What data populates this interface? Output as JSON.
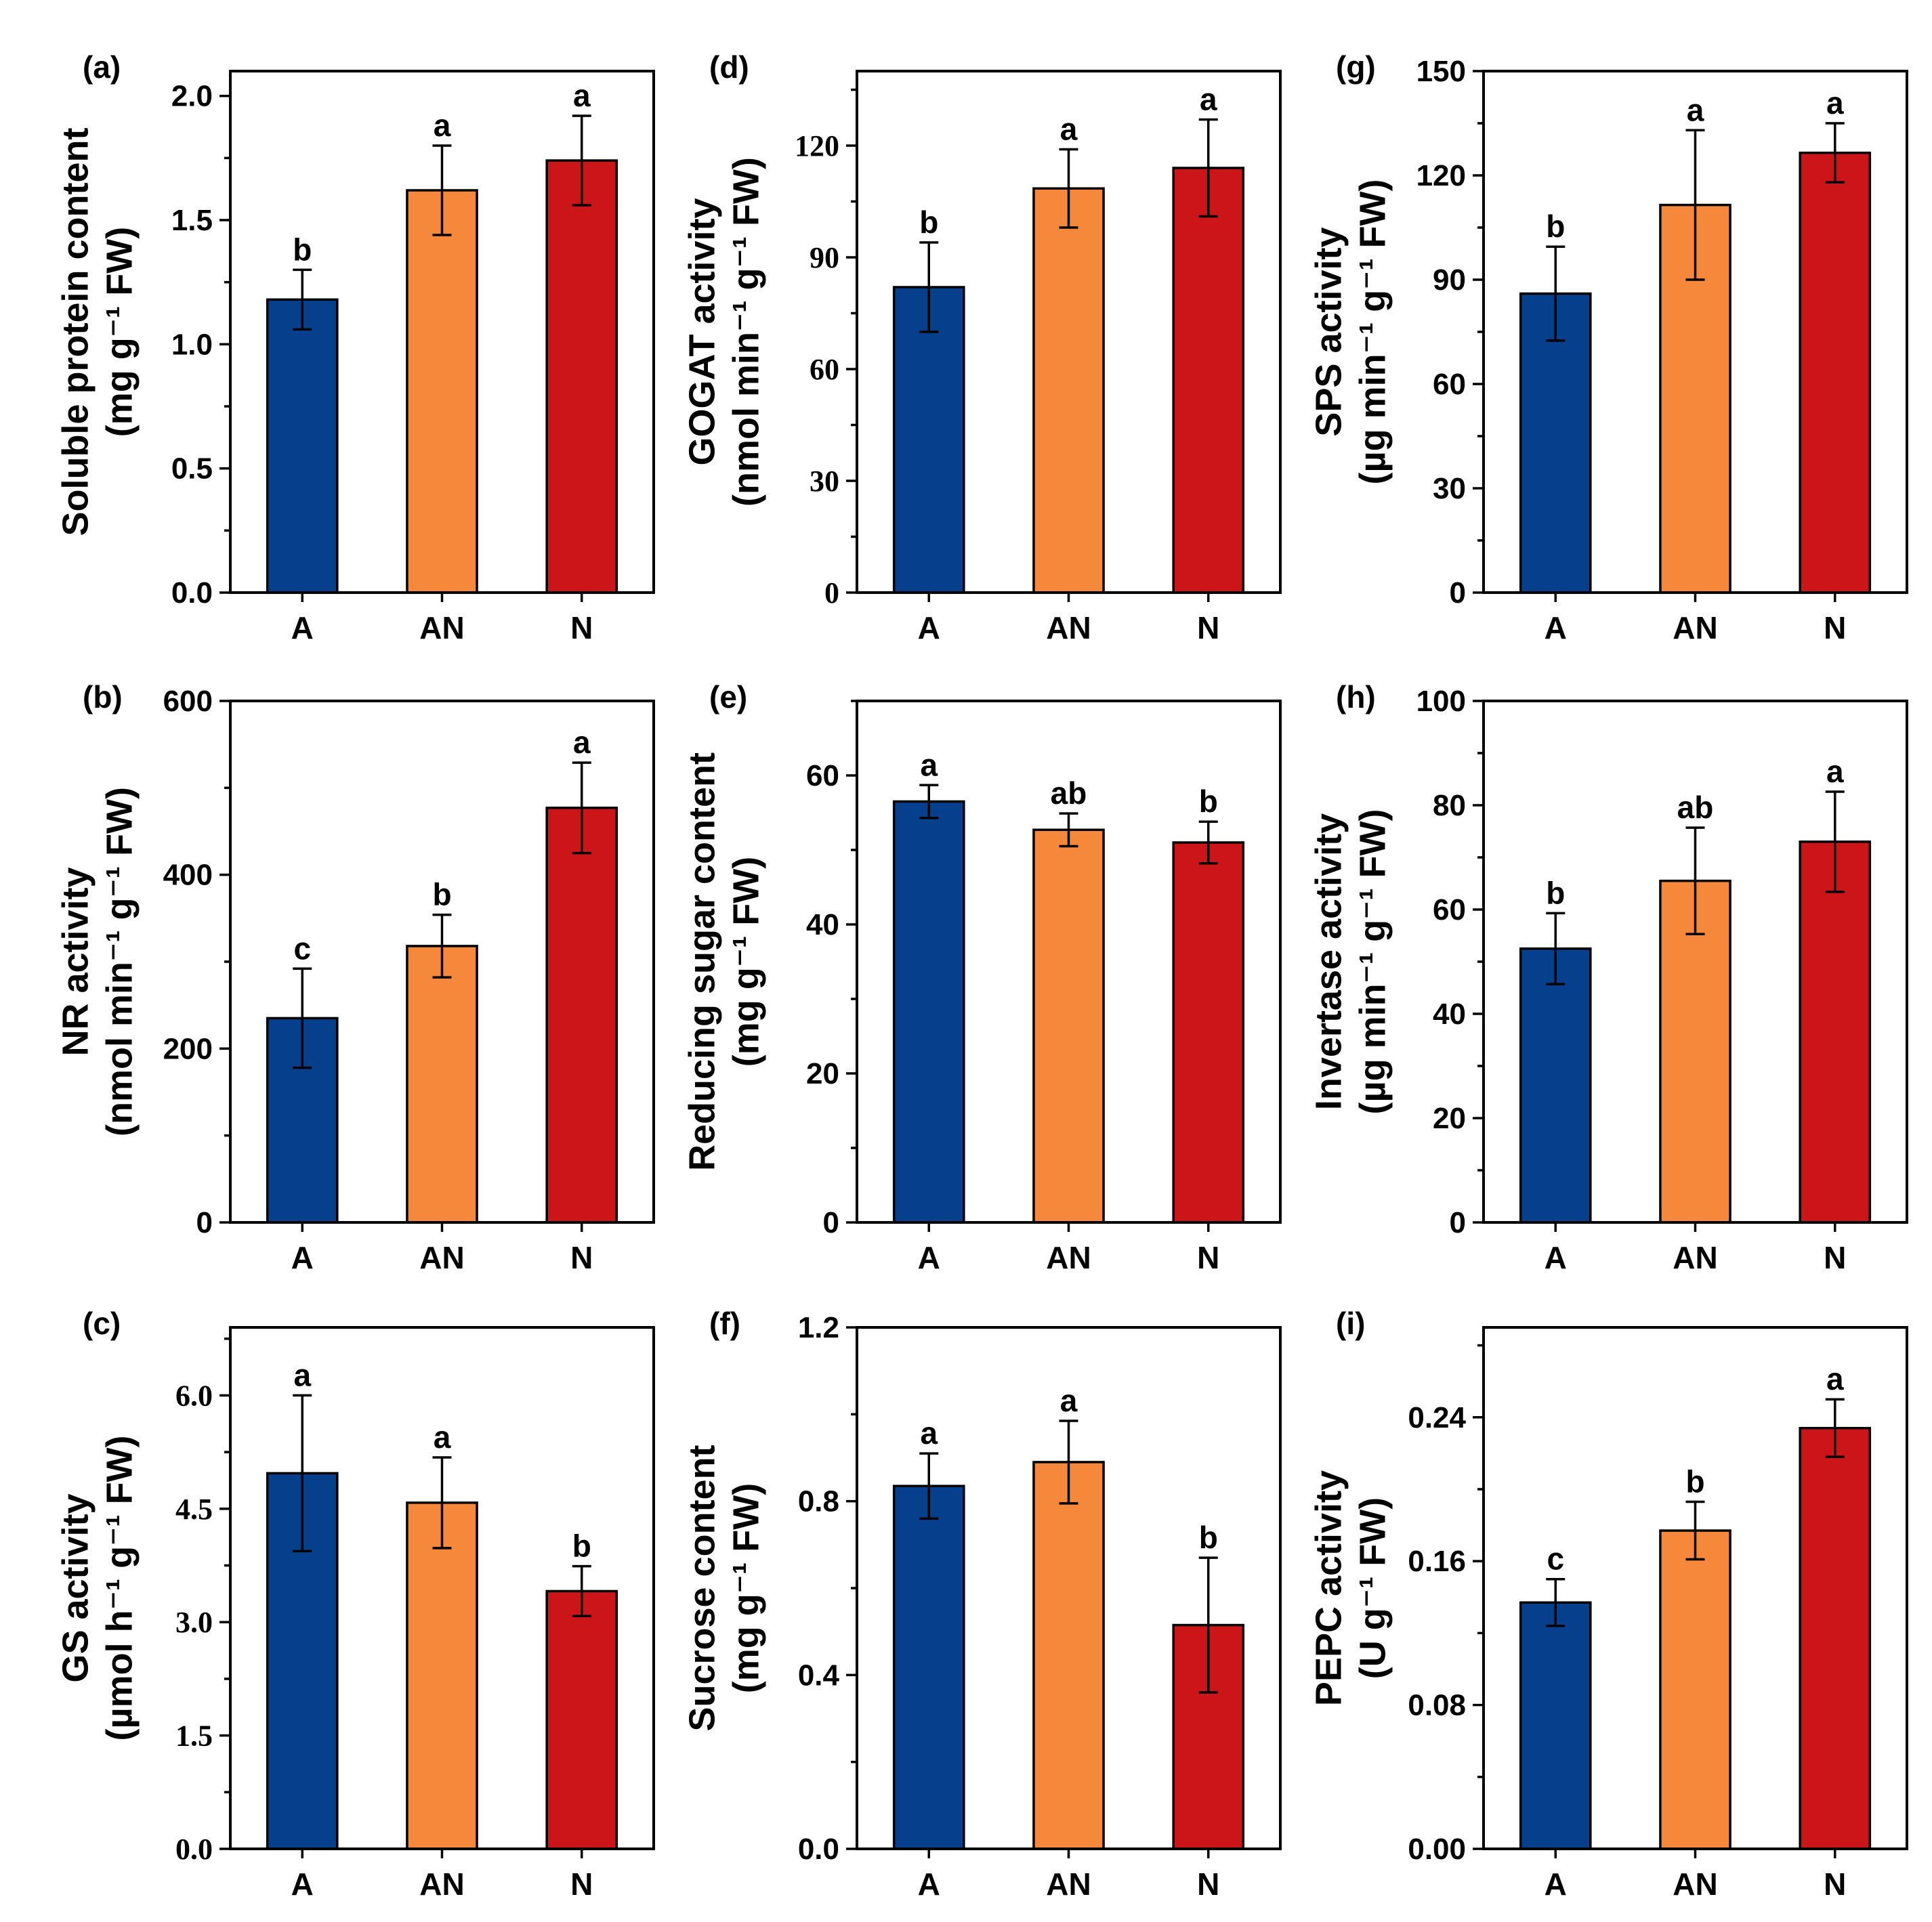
{
  "colors": {
    "A": "#063f8b",
    "AN": "#f5883b",
    "N": "#cc1519"
  },
  "chart_data": [
    {
      "id": "a",
      "type": "bar",
      "panel_label": "(a)",
      "ylabel_line1": "Soluble protein content",
      "ylabel_line2": "(mg g⁻¹ FW)",
      "categories": [
        "A",
        "AN",
        "N"
      ],
      "values": [
        1.18,
        1.62,
        1.74
      ],
      "errors": [
        0.12,
        0.18,
        0.18
      ],
      "significance": [
        "b",
        "a",
        "a"
      ],
      "ylim": [
        0,
        2.1
      ],
      "yticks": [
        0.0,
        0.5,
        1.0,
        1.5,
        2.0
      ],
      "yticklabels": [
        "0.0",
        "0.5",
        "1.0",
        "1.5",
        "2.0"
      ],
      "minor_step": 0.25,
      "tick_font": "sans"
    },
    {
      "id": "b",
      "type": "bar",
      "panel_label": "(b)",
      "ylabel_line1": "NR activity",
      "ylabel_line2": "(nmol min⁻¹ g⁻¹ FW)",
      "categories": [
        "A",
        "AN",
        "N"
      ],
      "values": [
        235,
        318,
        477
      ],
      "errors": [
        57,
        36,
        52
      ],
      "significance": [
        "c",
        "b",
        "a"
      ],
      "ylim": [
        0,
        600
      ],
      "yticks": [
        0,
        200,
        400,
        600
      ],
      "yticklabels": [
        "0",
        "200",
        "400",
        "600"
      ],
      "minor_step": 100,
      "tick_font": "sans"
    },
    {
      "id": "c",
      "type": "bar",
      "panel_label": "(c)",
      "ylabel_line1": "GS activity",
      "ylabel_line2": "(µmol h⁻¹ g⁻¹ FW)",
      "categories": [
        "A",
        "AN",
        "N"
      ],
      "values": [
        4.97,
        4.58,
        3.41
      ],
      "errors": [
        1.03,
        0.6,
        0.33
      ],
      "significance": [
        "a",
        "a",
        "b"
      ],
      "ylim": [
        0,
        6.9
      ],
      "yticks": [
        0.0,
        1.5,
        3.0,
        4.5,
        6.0
      ],
      "yticklabels": [
        "0.0",
        "1.5",
        "3.0",
        "4.5",
        "6.0"
      ],
      "minor_step": 0.75,
      "tick_font": "serif"
    },
    {
      "id": "d",
      "type": "bar",
      "panel_label": "(d)",
      "ylabel_line1": "GOGAT activity",
      "ylabel_line2": "(nmol min⁻¹ g⁻¹ FW)",
      "categories": [
        "A",
        "AN",
        "N"
      ],
      "values": [
        82,
        108.5,
        114
      ],
      "errors": [
        12,
        10.5,
        13
      ],
      "significance": [
        "b",
        "a",
        "a"
      ],
      "ylim": [
        0,
        140
      ],
      "yticks": [
        0,
        30,
        60,
        90,
        120
      ],
      "yticklabels": [
        "0",
        "30",
        "60",
        "90",
        "120"
      ],
      "minor_step": 15,
      "tick_font": "serif"
    },
    {
      "id": "e",
      "type": "bar",
      "panel_label": "(e)",
      "ylabel_line1": "Reducing sugar content",
      "ylabel_line2": "(mg g⁻¹ FW)",
      "categories": [
        "A",
        "AN",
        "N"
      ],
      "values": [
        56.5,
        52.7,
        51.0
      ],
      "errors": [
        2.2,
        2.2,
        2.8
      ],
      "significance": [
        "a",
        "ab",
        "b"
      ],
      "ylim": [
        0,
        70
      ],
      "yticks": [
        0,
        20,
        40,
        60
      ],
      "yticklabels": [
        "0",
        "20",
        "40",
        "60"
      ],
      "minor_step": 10,
      "tick_font": "sans"
    },
    {
      "id": "f",
      "type": "bar",
      "panel_label": "(f)",
      "ylabel_line1": "Sucrose content",
      "ylabel_line2": "(mg g⁻¹ FW)",
      "categories": [
        "A",
        "AN",
        "N"
      ],
      "values": [
        0.835,
        0.89,
        0.515
      ],
      "errors": [
        0.075,
        0.095,
        0.155
      ],
      "significance": [
        "a",
        "a",
        "b"
      ],
      "ylim": [
        0,
        1.2
      ],
      "yticks": [
        0.0,
        0.4,
        0.8,
        1.2
      ],
      "yticklabels": [
        "0.0",
        "0.4",
        "0.8",
        "1.2"
      ],
      "minor_step": 0.2,
      "tick_font": "sans"
    },
    {
      "id": "g",
      "type": "bar",
      "panel_label": "(g)",
      "ylabel_line1": "SPS activity",
      "ylabel_line2": "(µg min⁻¹ g⁻¹ FW)",
      "categories": [
        "A",
        "AN",
        "N"
      ],
      "values": [
        86,
        111.5,
        126.5
      ],
      "errors": [
        13.5,
        21.5,
        8.5
      ],
      "significance": [
        "b",
        "a",
        "a"
      ],
      "ylim": [
        0,
        150
      ],
      "yticks": [
        0,
        30,
        60,
        90,
        120,
        150
      ],
      "yticklabels": [
        "0",
        "30",
        "60",
        "90",
        "120",
        "150"
      ],
      "minor_step": 15,
      "tick_font": "sans"
    },
    {
      "id": "h",
      "type": "bar",
      "panel_label": "(h)",
      "ylabel_line1": "Invertase activity",
      "ylabel_line2": "(µg min⁻¹ g⁻¹ FW)",
      "categories": [
        "A",
        "AN",
        "N"
      ],
      "values": [
        52.5,
        65.5,
        73.0
      ],
      "errors": [
        6.8,
        10.2,
        9.6
      ],
      "significance": [
        "b",
        "ab",
        "a"
      ],
      "ylim": [
        0,
        100
      ],
      "yticks": [
        0,
        20,
        40,
        60,
        80,
        100
      ],
      "yticklabels": [
        "0",
        "20",
        "40",
        "60",
        "80",
        "100"
      ],
      "minor_step": 10,
      "tick_font": "sans"
    },
    {
      "id": "i",
      "type": "bar",
      "panel_label": "(i)",
      "ylabel_line1": "PEPC activity",
      "ylabel_line2": "(U g⁻¹ FW)",
      "categories": [
        "A",
        "AN",
        "N"
      ],
      "values": [
        0.137,
        0.177,
        0.234
      ],
      "errors": [
        0.013,
        0.016,
        0.016
      ],
      "significance": [
        "c",
        "b",
        "a"
      ],
      "ylim": [
        0,
        0.29
      ],
      "yticks": [
        0.0,
        0.08,
        0.16,
        0.24
      ],
      "yticklabels": [
        "0.00",
        "0.08",
        "0.16",
        "0.24"
      ],
      "minor_step": 0.04,
      "tick_font": "sans"
    }
  ]
}
